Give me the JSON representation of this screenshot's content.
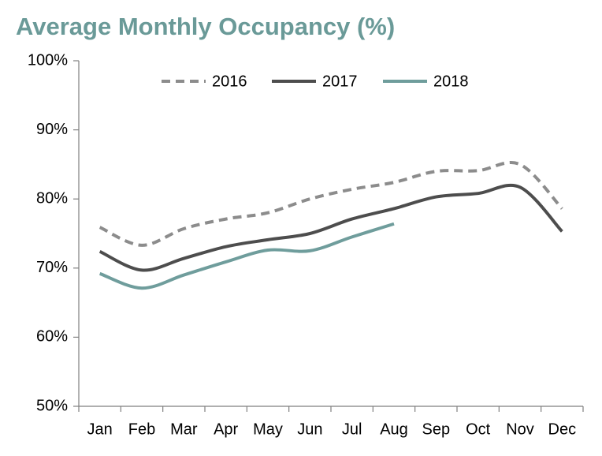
{
  "chart_data": {
    "type": "line",
    "title": "Average Monthly Occupancy (%)",
    "categories": [
      "Jan",
      "Feb",
      "Mar",
      "Apr",
      "May",
      "Jun",
      "Jul",
      "Aug",
      "Sep",
      "Oct",
      "Nov",
      "Dec"
    ],
    "series": [
      {
        "name": "2016",
        "color": "#8c8c8c",
        "dashed": true,
        "values": [
          75.9,
          73.3,
          75.7,
          77.1,
          78.0,
          80.0,
          81.4,
          82.4,
          84.0,
          84.1,
          85.0,
          78.6
        ]
      },
      {
        "name": "2017",
        "color": "#4d4d4d",
        "dashed": false,
        "values": [
          72.4,
          69.7,
          71.4,
          73.1,
          74.1,
          75.0,
          77.1,
          78.6,
          80.3,
          80.8,
          81.7,
          75.3
        ]
      },
      {
        "name": "2018",
        "color": "#6f9d9c",
        "dashed": false,
        "values": [
          69.2,
          67.1,
          69.0,
          70.9,
          72.6,
          72.5,
          74.5,
          76.4,
          null,
          null,
          null,
          null
        ]
      }
    ],
    "ylim": [
      50,
      100
    ],
    "yticks": [
      {
        "value": 50,
        "label": "50%"
      },
      {
        "value": 60,
        "label": "60%"
      },
      {
        "value": 70,
        "label": "70%"
      },
      {
        "value": 80,
        "label": "80%"
      },
      {
        "value": 90,
        "label": "90%"
      },
      {
        "value": 100,
        "label": "100%"
      }
    ],
    "legend": "top"
  }
}
